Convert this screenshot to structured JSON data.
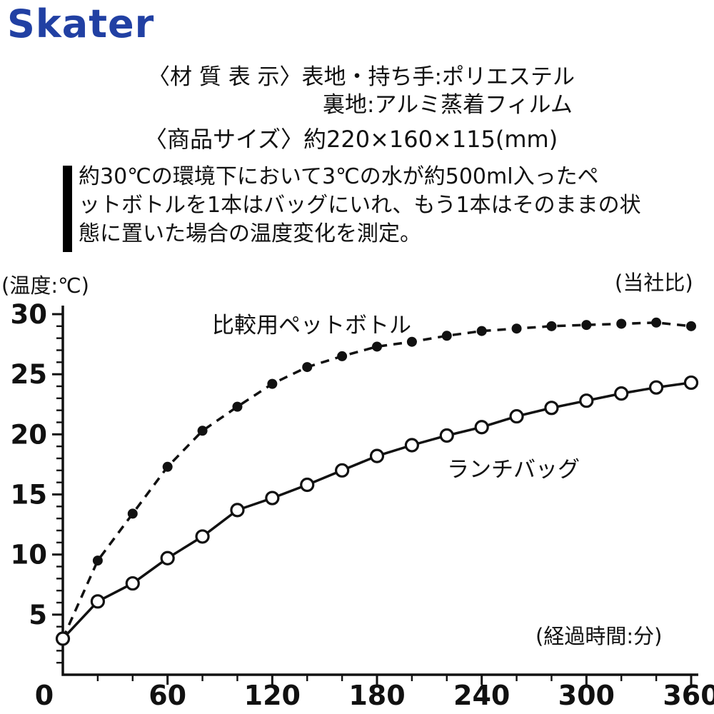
{
  "brand": {
    "logo": "Skater",
    "logo_color": "#2140a3"
  },
  "info": {
    "material_line1": "〈材 質 表 示〉表地・持ち手:ポリエステル",
    "material_line2": "裏地:アルミ蒸着フィルム",
    "size_line": "〈商品サイズ〉約220×160×115(mm)",
    "note_line1": "約30℃の環境下において3℃の水が約500ml入ったペ",
    "note_line2": "ットボトルを1本はバッグにいれ、もう1本はそのままの状",
    "note_line3": "態に置いた場合の温度変化を測定。"
  },
  "chart_data": {
    "type": "line",
    "title": "",
    "ylabel": "(温度:℃)",
    "xlabel": "(経過時間:分)",
    "right_label": "(当社比)",
    "xlim": [
      0,
      360
    ],
    "ylim": [
      0,
      30
    ],
    "x_ticks": [
      0,
      60,
      120,
      180,
      240,
      300,
      360
    ],
    "y_ticks": [
      5,
      10,
      15,
      20,
      25,
      30
    ],
    "x_minor_step": 20,
    "y_minor_step": 1,
    "grid": false,
    "line_color": "#111111",
    "series": [
      {
        "name": "比較用ペットボトル",
        "style": "dashed",
        "marker": "filled",
        "x": [
          0,
          20,
          40,
          60,
          80,
          100,
          120,
          140,
          160,
          180,
          200,
          220,
          240,
          260,
          280,
          300,
          320,
          340,
          360
        ],
        "values": [
          3,
          9.5,
          13.4,
          17.3,
          20.3,
          22.3,
          24.2,
          25.6,
          26.5,
          27.3,
          27.7,
          28.2,
          28.6,
          28.8,
          29.0,
          29.1,
          29.2,
          29.3,
          29.0
        ]
      },
      {
        "name": "ランチバッグ",
        "style": "solid",
        "marker": "open",
        "x": [
          0,
          20,
          40,
          60,
          80,
          100,
          120,
          140,
          160,
          180,
          200,
          220,
          240,
          260,
          280,
          300,
          320,
          340,
          360
        ],
        "values": [
          3,
          6.1,
          7.6,
          9.7,
          11.5,
          13.7,
          14.7,
          15.8,
          17.0,
          18.2,
          19.1,
          19.9,
          20.6,
          21.5,
          22.2,
          22.8,
          23.4,
          23.9,
          24.3
        ]
      }
    ]
  }
}
